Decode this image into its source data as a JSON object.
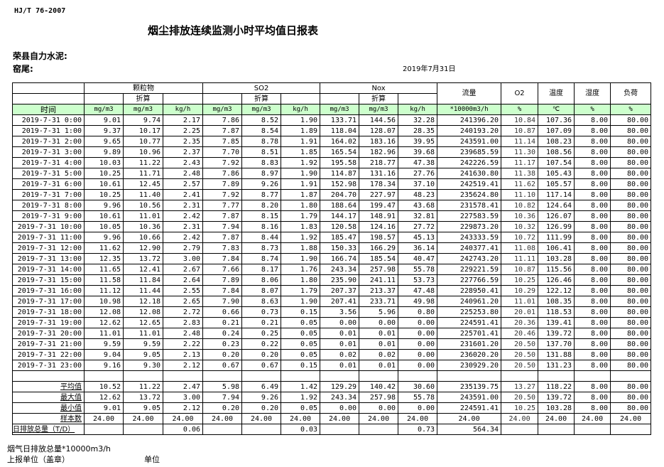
{
  "standard": "HJ/T  76-2007",
  "title": "烟尘排放连续监测小时平均值日报表",
  "company": "荣县自力水泥:",
  "kiln": "窑尾:",
  "date": "2019年7月31日",
  "header": {
    "particulate": "颗粒物",
    "so2": "SO2",
    "nox": "Nox",
    "converted": "折算",
    "flow": "流量",
    "o2": "O2",
    "temperature": "温度",
    "humidity": "湿度",
    "load": "负荷"
  },
  "units": [
    "时间",
    "mg/m3",
    "mg/m3",
    "kg/h",
    "mg/m3",
    "mg/m3",
    "kg/h",
    "mg/m3",
    "mg/m3",
    "kg/h",
    "*10000m3/h",
    "%",
    "℃",
    "%",
    "%"
  ],
  "rows": [
    [
      "2019-7-31 0:00",
      "9.01",
      "9.74",
      "2.17",
      "7.86",
      "8.52",
      "1.90",
      "133.71",
      "144.56",
      "32.28",
      "241396.20",
      "10.84",
      "107.36",
      "8.00",
      "80.00"
    ],
    [
      "2019-7-31 1:00",
      "9.37",
      "10.17",
      "2.25",
      "7.87",
      "8.54",
      "1.89",
      "118.04",
      "128.07",
      "28.35",
      "240193.20",
      "10.87",
      "107.09",
      "8.00",
      "80.00"
    ],
    [
      "2019-7-31 2:00",
      "9.65",
      "10.77",
      "2.35",
      "7.85",
      "8.78",
      "1.91",
      "164.02",
      "183.16",
      "39.95",
      "243591.00",
      "11.14",
      "108.23",
      "8.00",
      "80.00"
    ],
    [
      "2019-7-31 3:00",
      "9.89",
      "10.96",
      "2.37",
      "7.70",
      "8.51",
      "1.85",
      "165.54",
      "182.96",
      "39.68",
      "239685.59",
      "11.30",
      "108.56",
      "8.00",
      "80.00"
    ],
    [
      "2019-7-31 4:00",
      "10.03",
      "11.22",
      "2.43",
      "7.92",
      "8.83",
      "1.92",
      "195.58",
      "218.77",
      "47.38",
      "242226.59",
      "11.17",
      "107.54",
      "8.00",
      "80.00"
    ],
    [
      "2019-7-31 5:00",
      "10.25",
      "11.71",
      "2.48",
      "7.86",
      "8.97",
      "1.90",
      "114.87",
      "131.16",
      "27.76",
      "241630.80",
      "11.38",
      "105.43",
      "8.00",
      "80.00"
    ],
    [
      "2019-7-31 6:00",
      "10.61",
      "12.45",
      "2.57",
      "7.89",
      "9.26",
      "1.91",
      "152.98",
      "178.34",
      "37.10",
      "242519.41",
      "11.62",
      "105.57",
      "8.00",
      "80.00"
    ],
    [
      "2019-7-31 7:00",
      "10.25",
      "11.40",
      "2.41",
      "7.92",
      "8.77",
      "1.87",
      "204.70",
      "227.97",
      "48.23",
      "235624.80",
      "11.10",
      "117.14",
      "8.00",
      "80.00"
    ],
    [
      "2019-7-31 8:00",
      "9.96",
      "10.56",
      "2.31",
      "7.77",
      "8.20",
      "1.80",
      "188.64",
      "199.47",
      "43.68",
      "231578.41",
      "10.82",
      "124.64",
      "8.00",
      "80.00"
    ],
    [
      "2019-7-31 9:00",
      "10.61",
      "11.01",
      "2.42",
      "7.87",
      "8.15",
      "1.79",
      "144.17",
      "148.91",
      "32.81",
      "227583.59",
      "10.36",
      "126.07",
      "8.00",
      "80.00"
    ],
    [
      "2019-7-31 10:00",
      "10.05",
      "10.36",
      "2.31",
      "7.94",
      "8.16",
      "1.83",
      "120.58",
      "124.16",
      "27.72",
      "229873.20",
      "10.32",
      "126.99",
      "8.00",
      "80.00"
    ],
    [
      "2019-7-31 11:00",
      "9.96",
      "10.66",
      "2.42",
      "7.87",
      "8.44",
      "1.92",
      "185.47",
      "198.57",
      "45.13",
      "243333.59",
      "10.72",
      "111.99",
      "8.00",
      "80.00"
    ],
    [
      "2019-7-31 12:00",
      "11.62",
      "12.90",
      "2.79",
      "7.83",
      "8.73",
      "1.88",
      "150.33",
      "166.29",
      "36.14",
      "240377.41",
      "11.08",
      "106.41",
      "8.00",
      "80.00"
    ],
    [
      "2019-7-31 13:00",
      "12.35",
      "13.72",
      "3.00",
      "7.84",
      "8.74",
      "1.90",
      "166.74",
      "185.54",
      "40.47",
      "242743.20",
      "11.11",
      "103.28",
      "8.00",
      "80.00"
    ],
    [
      "2019-7-31 14:00",
      "11.65",
      "12.41",
      "2.67",
      "7.66",
      "8.17",
      "1.76",
      "243.34",
      "257.98",
      "55.78",
      "229221.59",
      "10.87",
      "115.56",
      "8.00",
      "80.00"
    ],
    [
      "2019-7-31 15:00",
      "11.58",
      "11.84",
      "2.64",
      "7.89",
      "8.06",
      "1.80",
      "235.90",
      "241.11",
      "53.73",
      "227766.59",
      "10.25",
      "126.46",
      "8.00",
      "80.00"
    ],
    [
      "2019-7-31 16:00",
      "11.12",
      "11.44",
      "2.55",
      "7.84",
      "8.07",
      "1.79",
      "207.37",
      "213.37",
      "47.48",
      "228950.41",
      "10.29",
      "122.12",
      "8.00",
      "80.00"
    ],
    [
      "2019-7-31 17:00",
      "10.98",
      "12.18",
      "2.65",
      "7.90",
      "8.63",
      "1.90",
      "207.41",
      "233.71",
      "49.98",
      "240961.20",
      "11.01",
      "108.35",
      "8.00",
      "80.00"
    ],
    [
      "2019-7-31 18:00",
      "12.08",
      "12.08",
      "2.72",
      "0.66",
      "0.73",
      "0.15",
      "3.56",
      "5.96",
      "0.80",
      "225253.80",
      "20.01",
      "118.53",
      "8.00",
      "80.00"
    ],
    [
      "2019-7-31 19:00",
      "12.62",
      "12.65",
      "2.83",
      "0.21",
      "0.21",
      "0.05",
      "0.00",
      "0.00",
      "0.00",
      "224591.41",
      "20.36",
      "139.41",
      "8.00",
      "80.00"
    ],
    [
      "2019-7-31 20:00",
      "11.01",
      "11.01",
      "2.48",
      "0.24",
      "0.25",
      "0.05",
      "0.01",
      "0.01",
      "0.00",
      "225701.41",
      "20.46",
      "139.72",
      "8.00",
      "80.00"
    ],
    [
      "2019-7-31 21:00",
      "9.59",
      "9.59",
      "2.22",
      "0.23",
      "0.22",
      "0.05",
      "0.01",
      "0.01",
      "0.00",
      "231601.20",
      "20.50",
      "137.70",
      "8.00",
      "80.00"
    ],
    [
      "2019-7-31 22:00",
      "9.04",
      "9.05",
      "2.13",
      "0.20",
      "0.20",
      "0.05",
      "0.02",
      "0.02",
      "0.00",
      "236020.20",
      "20.50",
      "131.88",
      "8.00",
      "80.00"
    ],
    [
      "2019-7-31 23:00",
      "9.16",
      "9.30",
      "2.12",
      "0.67",
      "0.67",
      "0.15",
      "0.01",
      "0.01",
      "0.00",
      "230929.20",
      "20.50",
      "131.23",
      "8.00",
      "80.00"
    ]
  ],
  "summary": [
    [
      "平均值",
      "10.52",
      "11.22",
      "2.47",
      "5.98",
      "6.49",
      "1.42",
      "129.29",
      "140.42",
      "30.60",
      "235139.75",
      "13.27",
      "118.22",
      "8.00",
      "80.00"
    ],
    [
      "最大值",
      "12.62",
      "13.72",
      "3.00",
      "7.94",
      "9.26",
      "1.92",
      "243.34",
      "257.98",
      "55.78",
      "243591.00",
      "20.50",
      "139.72",
      "8.00",
      "80.00"
    ],
    [
      "最小值",
      "9.01",
      "9.05",
      "2.12",
      "0.20",
      "0.20",
      "0.05",
      "0.00",
      "0.00",
      "0.00",
      "224591.41",
      "10.25",
      "103.28",
      "8.00",
      "80.00"
    ],
    [
      "样本数",
      "24.00",
      "24.00",
      "24.00",
      "24.00",
      "24.00",
      "24.00",
      "24.00",
      "24.00",
      "24.00",
      "24.00",
      "24.00",
      "24.00",
      "24.00",
      "24.00"
    ],
    [
      "日排放总量（T/D）",
      "",
      "",
      "0.06",
      "",
      "",
      "0.03",
      "",
      "",
      "0.73",
      "564.34",
      "",
      "",
      "",
      ""
    ]
  ],
  "footer": {
    "flue_gas_total": "烟气日排放总量*10000m3/h",
    "reporting_unit": "上报单位（盖章）",
    "unit": "单位"
  }
}
